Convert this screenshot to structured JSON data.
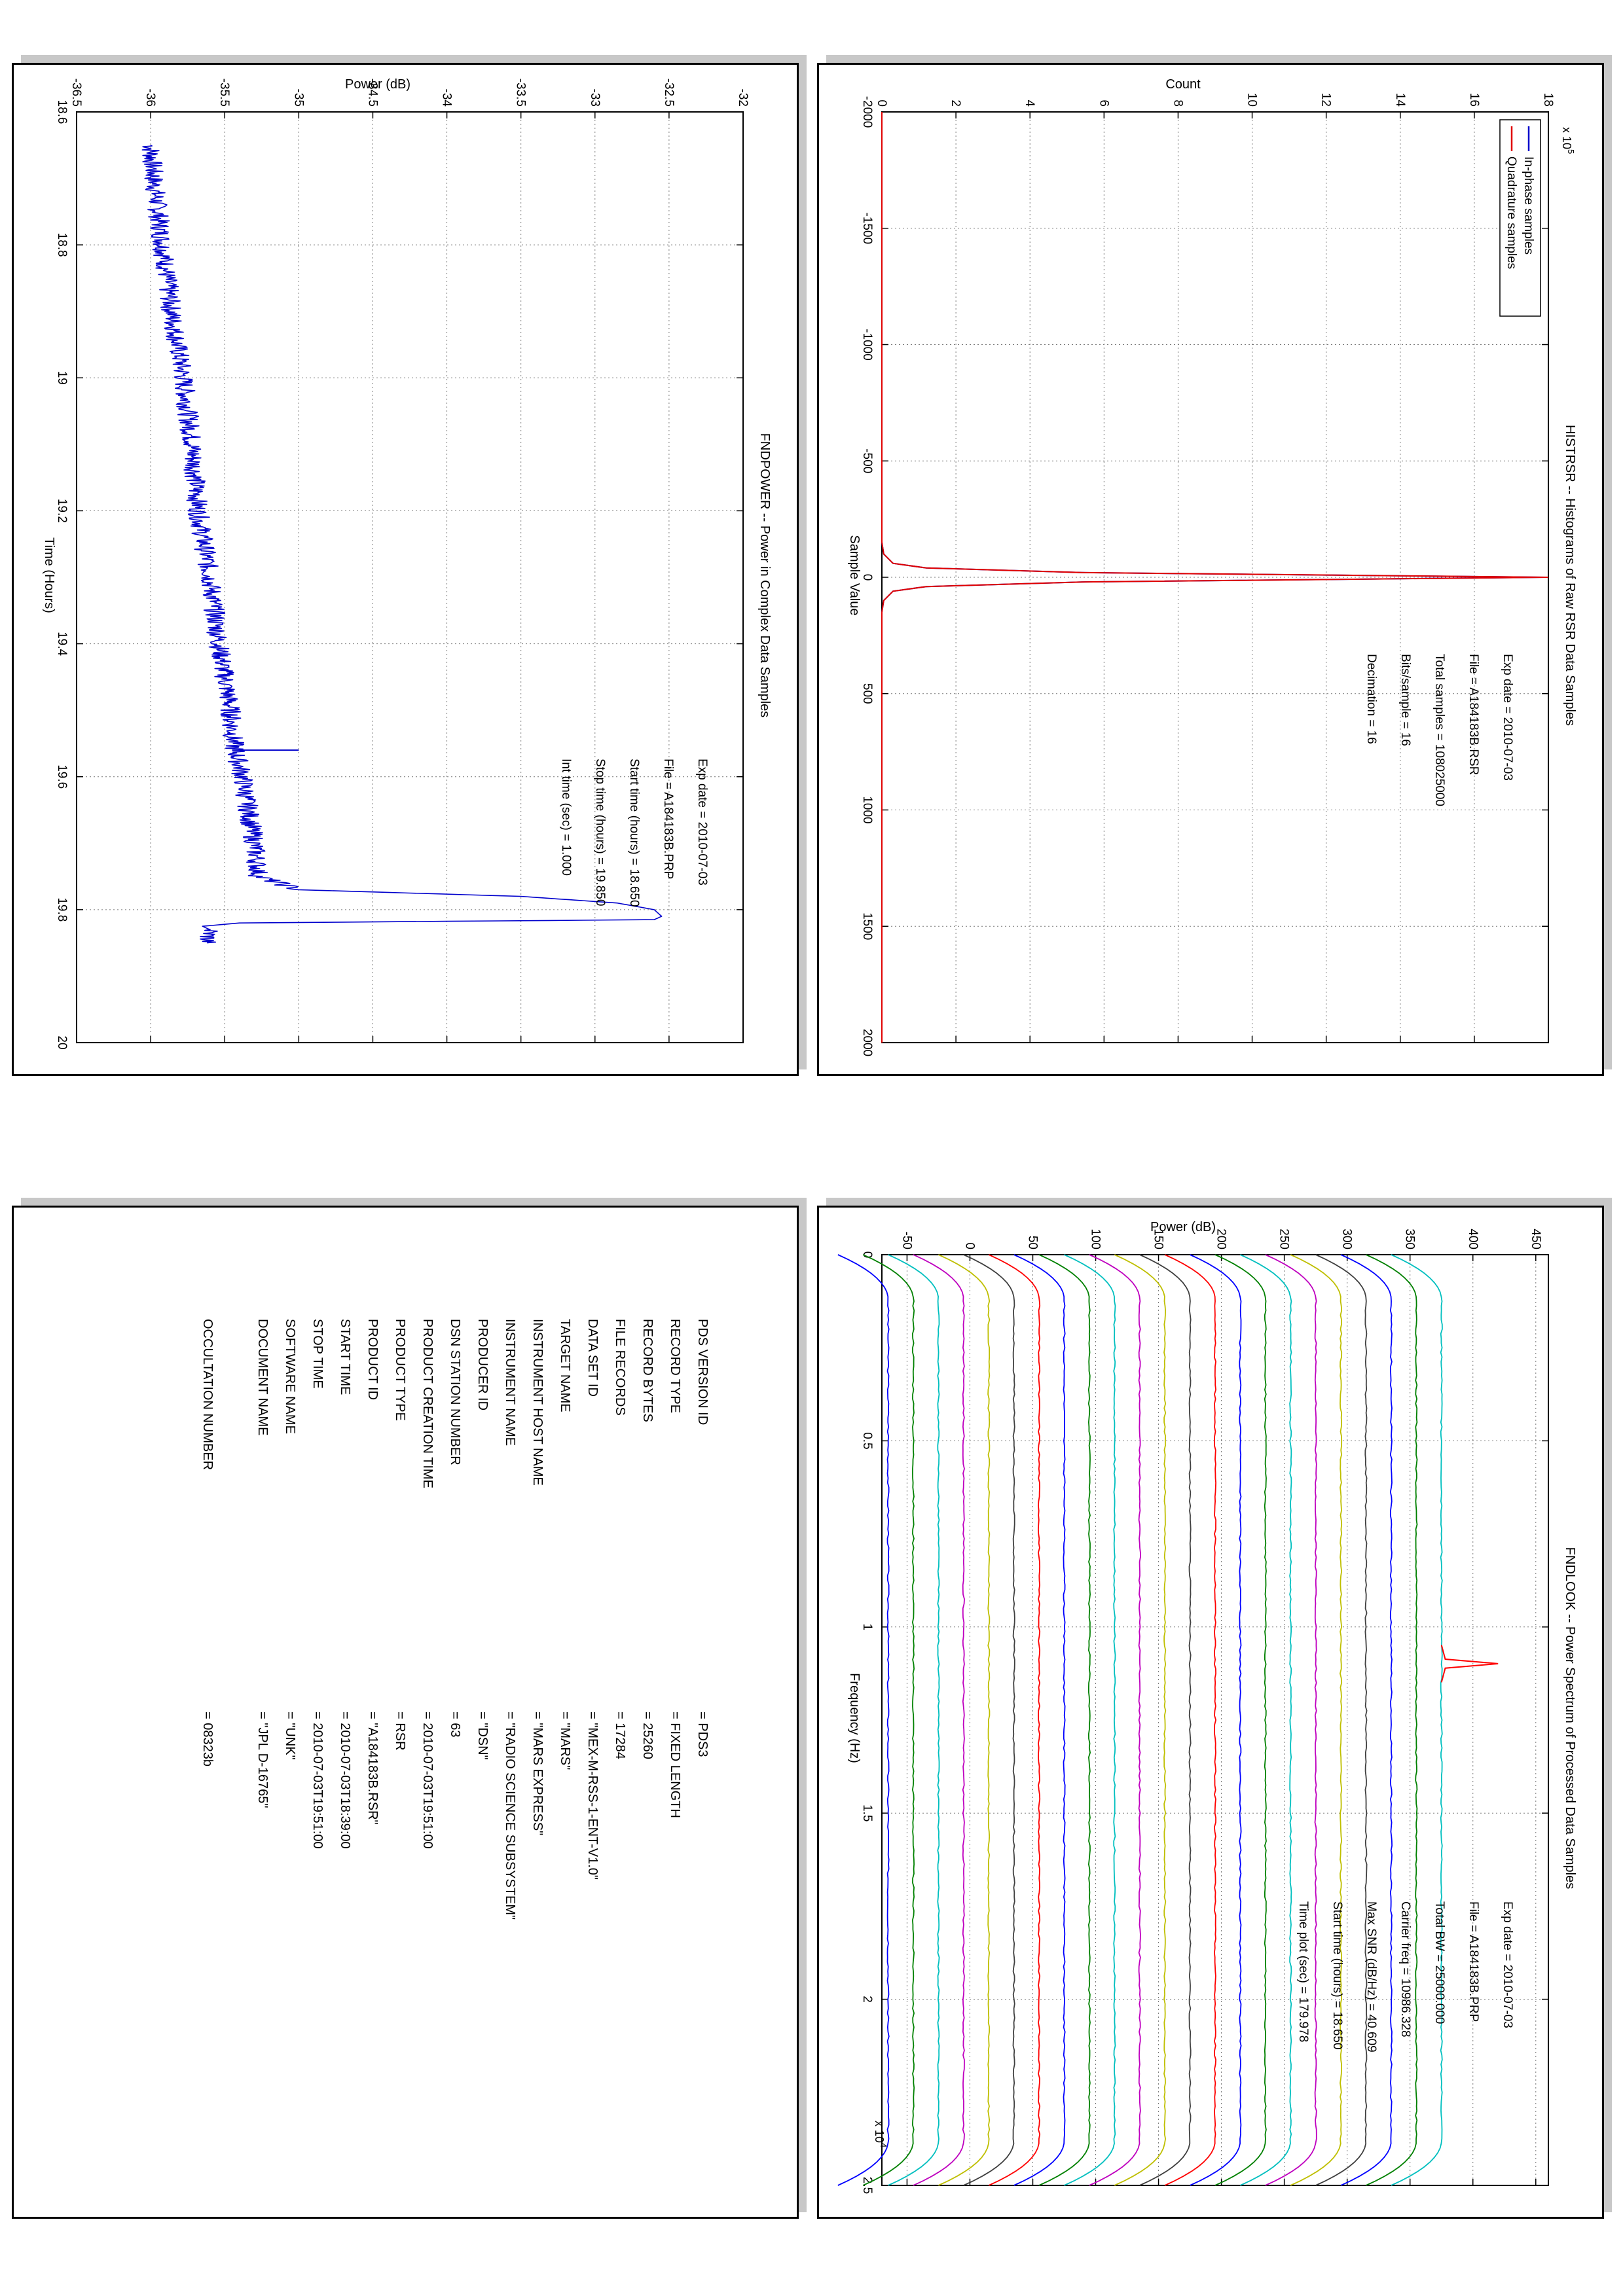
{
  "colors": {
    "blue": "#0000cc",
    "red": "#e00000",
    "trace_cycle": [
      "#0000ff",
      "#008000",
      "#00bfbf",
      "#bf00bf",
      "#bfbf00",
      "#404040",
      "#ff0000",
      "#0000ff",
      "#008000",
      "#00bfbf",
      "#bf00bf",
      "#bfbf00",
      "#404040",
      "#ff0000",
      "#0000ff",
      "#008000",
      "#00bfbf",
      "#bf00bf",
      "#bfbf00",
      "#404040"
    ]
  },
  "chart_data": [
    {
      "id": "histrsr",
      "type": "line",
      "title": "HISTRSR -- Histograms of Raw RSR Data Samples",
      "xlabel": "Sample Value",
      "ylabel": "Count",
      "xlim": [
        -2000,
        2000
      ],
      "ylim": [
        0,
        18
      ],
      "y_exponent": "x 10",
      "y_exponent_power": "5",
      "xticks": [
        "-2000",
        "-1500",
        "-1000",
        "-500",
        "0",
        "500",
        "1000",
        "1500",
        "2000"
      ],
      "yticks": [
        "0",
        "2",
        "4",
        "6",
        "8",
        "10",
        "12",
        "14",
        "16",
        "18"
      ],
      "grid": true,
      "legend_position": "top-left",
      "info": [
        "Exp date = 2010-07-03",
        "File = A184183B.RSR",
        "Total samples = 108025000",
        "Bits/sample   =        16",
        "Decimation    =        16"
      ],
      "series": [
        {
          "name": "In-phase samples",
          "color": "#0000cc",
          "x": [
            -2000,
            -150,
            -100,
            -60,
            -40,
            -20,
            0,
            20,
            40,
            60,
            100,
            150,
            2000
          ],
          "y": [
            0,
            0,
            0.05,
            0.3,
            1.2,
            5.5,
            17.9,
            5.5,
            1.2,
            0.3,
            0.05,
            0,
            0
          ]
        },
        {
          "name": "Quadrature samples",
          "color": "#e00000",
          "x": [
            -2000,
            -150,
            -100,
            -60,
            -40,
            -20,
            0,
            20,
            40,
            60,
            100,
            150,
            2000
          ],
          "y": [
            0,
            0,
            0.05,
            0.3,
            1.2,
            5.5,
            18,
            5.5,
            1.2,
            0.3,
            0.05,
            0,
            0
          ]
        }
      ]
    },
    {
      "id": "fndpower",
      "type": "line",
      "title": "FNDPOWER -- Power in Complex Data Samples",
      "xlabel": "Time (Hours)",
      "ylabel": "Power (dB)",
      "xlim": [
        18.6,
        20
      ],
      "ylim": [
        -36.5,
        -32
      ],
      "xticks": [
        "18.6",
        "18.8",
        "19",
        "19.2",
        "19.4",
        "19.6",
        "19.8",
        "20"
      ],
      "yticks": [
        "-36.5",
        "-36",
        "-35.5",
        "-35",
        "-34.5",
        "-34",
        "-33.5",
        "-33",
        "-32.5",
        "-32"
      ],
      "grid": true,
      "info": [
        "Exp date = 2010-07-03",
        "File = A184183B.PRP",
        "Start time (hours) = 18.650",
        "Stop time (hours) = 19.850",
        "Int time (sec) =      1.000"
      ],
      "series": [
        {
          "color": "#0000cc",
          "x": [
            18.65,
            18.7,
            18.8,
            18.9,
            19.0,
            19.1,
            19.2,
            19.3,
            19.4,
            19.5,
            19.55,
            19.6,
            19.7,
            19.75,
            19.77,
            19.78,
            19.79,
            19.8,
            19.81,
            19.815,
            19.82,
            19.825,
            19.83,
            19.85
          ],
          "y": [
            -36.0,
            -35.98,
            -35.92,
            -35.86,
            -35.78,
            -35.72,
            -35.68,
            -35.6,
            -35.54,
            -35.46,
            -35.44,
            -35.38,
            -35.3,
            -35.27,
            -35.0,
            -33.5,
            -32.85,
            -32.6,
            -32.55,
            -32.6,
            -35.4,
            -35.65,
            -35.6,
            -35.62
          ]
        }
      ],
      "spike": {
        "x": 19.56,
        "y_from": -35.45,
        "y_to": -35.0
      }
    },
    {
      "id": "fndlook",
      "type": "line",
      "title": "FNDLOOK -- Power Spectrum of Processed Data Samples",
      "xlabel": "Frequency (Hz)",
      "ylabel": "Power (dB)",
      "xlim": [
        0,
        25000
      ],
      "ylim": [
        -70,
        460
      ],
      "x_exponent": "x 10",
      "x_exponent_power": "4",
      "xticks": [
        "0",
        "0.5",
        "1",
        "1.5",
        "2",
        "2.5"
      ],
      "xtick_values": [
        0,
        5000,
        10000,
        15000,
        20000,
        25000
      ],
      "yticks": [
        "-50",
        "0",
        "50",
        "100",
        "150",
        "200",
        "250",
        "300",
        "350",
        "400",
        "450"
      ],
      "ytick_values": [
        -50,
        0,
        50,
        100,
        150,
        200,
        250,
        300,
        350,
        400,
        450
      ],
      "grid": true,
      "info": [
        "Exp date = 2010-07-03",
        "File = A184183B.PRP",
        "Total BW =     25000.000",
        "Carrier freq =  10986.328",
        "Max SNR (dB/Hz) =    40.609",
        "Start time (hours) =  18.650",
        "Time plot (sec) =    179.978"
      ],
      "trace_levels": [
        -65,
        -45,
        -25,
        -5,
        15,
        35,
        55,
        75,
        95,
        115,
        135,
        155,
        175,
        195,
        215,
        235,
        255,
        275,
        295,
        315,
        335,
        355,
        375
      ],
      "peak_trace_level": 375,
      "peak_height": 420
    }
  ],
  "label_table": {
    "rows": [
      {
        "key": "PDS VERSION ID",
        "value": "= PDS3"
      },
      {
        "key": "RECORD TYPE",
        "value": "= FIXED LENGTH"
      },
      {
        "key": "RECORD BYTES",
        "value": "= 25260"
      },
      {
        "key": "FILE RECORDS",
        "value": "= 17284"
      },
      {
        "key": "DATA SET ID",
        "value": "= \"MEX-M-RSS-1-ENT-V1.0\""
      },
      {
        "key": "TARGET NAME",
        "value": "= \"MARS\""
      },
      {
        "key": "INSTRUMENT HOST NAME",
        "value": "= \"MARS EXPRESS\""
      },
      {
        "key": "INSTRUMENT NAME",
        "value": "= \"RADIO SCIENCE SUBSYSTEM\""
      },
      {
        "key": "PRODUCER ID",
        "value": "= \"DSN\""
      },
      {
        "key": "DSN STATION NUMBER",
        "value": "= 63"
      },
      {
        "key": "PRODUCT CREATION TIME",
        "value": "= 2010-07-03T19:51:00"
      },
      {
        "key": "PRODUCT TYPE",
        "value": "= RSR"
      },
      {
        "key": "PRODUCT ID",
        "value": "= \"A184183B.RSR\""
      },
      {
        "key": "START TIME",
        "value": "= 2010-07-03T18:39:00"
      },
      {
        "key": "STOP TIME",
        "value": "= 2010-07-03T19:51:00"
      },
      {
        "key": "SOFTWARE NAME",
        "value": "= \"UNK\""
      },
      {
        "key": "DOCUMENT NAME",
        "value": "= \"JPL D-16765\""
      },
      {
        "key": "",
        "value": ""
      },
      {
        "key": "OCCULTATION NUMBER",
        "value": "= 08323b"
      }
    ]
  }
}
